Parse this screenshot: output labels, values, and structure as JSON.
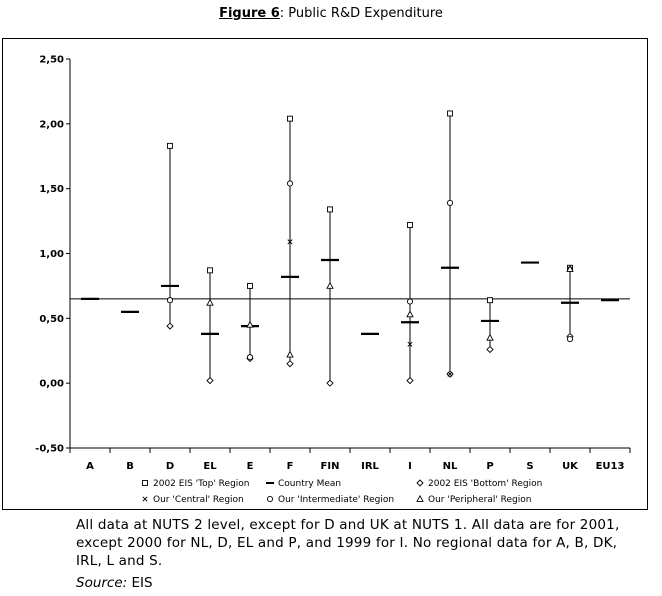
{
  "figure": {
    "label": "Figure 6",
    "title": ": Public R&D Expenditure"
  },
  "chart_data": {
    "type": "scatter",
    "title": "Figure 6: Public R&D Expenditure",
    "categories": [
      "A",
      "B",
      "D",
      "EL",
      "E",
      "F",
      "FIN",
      "IRL",
      "I",
      "NL",
      "P",
      "S",
      "UK",
      "EU13"
    ],
    "ylim": [
      -0.5,
      2.5
    ],
    "yticks": [
      "-0,50",
      "0,00",
      "0,50",
      "1,00",
      "1,50",
      "2,00",
      "2,50"
    ],
    "ytick_values": [
      -0.5,
      0,
      0.5,
      1.0,
      1.5,
      2.0,
      2.5
    ],
    "grid": false,
    "reference_line": 0.65,
    "series": [
      {
        "name": "2002 EIS 'Top' Region",
        "marker": "square",
        "values": [
          null,
          null,
          1.83,
          0.87,
          0.75,
          2.04,
          1.34,
          null,
          1.22,
          2.08,
          0.64,
          null,
          0.89,
          null
        ]
      },
      {
        "name": "Country Mean",
        "marker": "dash",
        "values": [
          0.65,
          0.55,
          0.75,
          0.38,
          0.44,
          0.82,
          0.95,
          0.38,
          0.47,
          0.89,
          0.48,
          0.93,
          0.62,
          0.64
        ]
      },
      {
        "name": "2002 EIS 'Bottom' Region",
        "marker": "diamond",
        "values": [
          null,
          null,
          0.44,
          0.02,
          0.19,
          0.15,
          0.0,
          null,
          0.02,
          0.07,
          0.26,
          null,
          0.36,
          null
        ]
      },
      {
        "name": "Our 'Central' Region",
        "marker": "x",
        "values": [
          null,
          null,
          0.64,
          null,
          0.2,
          1.09,
          null,
          null,
          0.3,
          0.07,
          null,
          null,
          0.88,
          null
        ]
      },
      {
        "name": "Our 'Intermediate' Region",
        "marker": "circle",
        "values": [
          null,
          null,
          0.64,
          null,
          0.2,
          1.54,
          null,
          null,
          0.63,
          1.39,
          null,
          null,
          0.34,
          null
        ]
      },
      {
        "name": "Our 'Peripheral' Region",
        "marker": "triangle",
        "values": [
          null,
          null,
          null,
          0.62,
          0.45,
          0.22,
          0.75,
          null,
          0.53,
          null,
          0.35,
          null,
          0.88,
          null
        ]
      }
    ],
    "legend_position": "bottom"
  },
  "note": "All data at NUTS 2 level, except for D and UK at NUTS 1. All data are for 2001, except 2000 for NL, D, EL and P, and 1999 for I. No regional data for A, B, DK, IRL, L and S.",
  "source_label": "Source:",
  "source_value": " EIS"
}
